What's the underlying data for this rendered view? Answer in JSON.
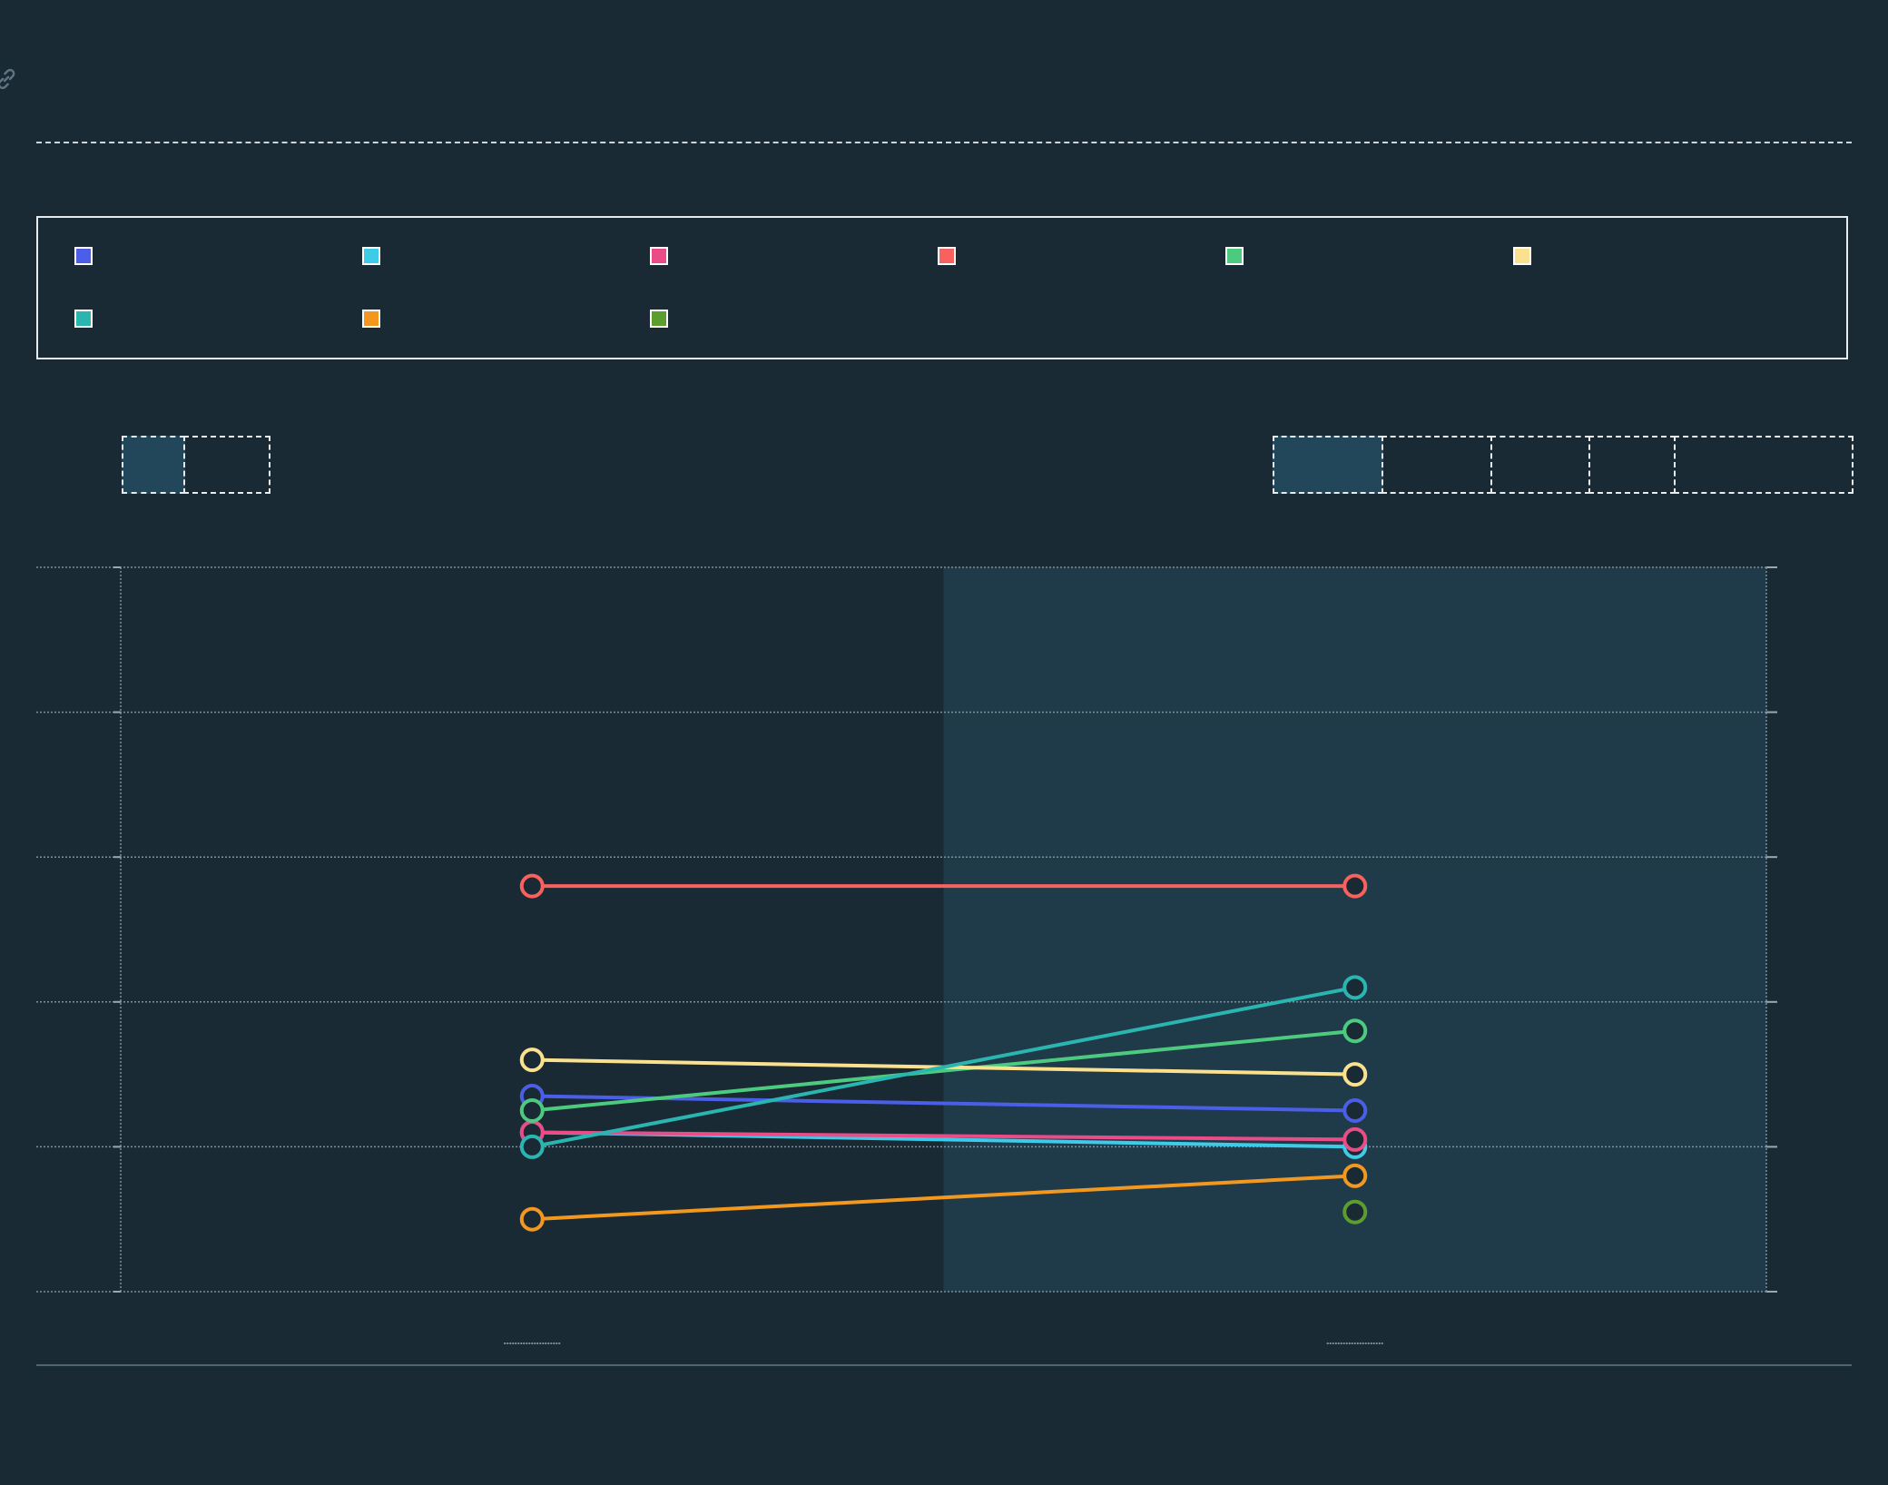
{
  "icons": {
    "link": "link-icon"
  },
  "legend": {
    "items": [
      {
        "label": "",
        "color": "#4b5ee8"
      },
      {
        "label": "",
        "color": "#3ecbe8"
      },
      {
        "label": "",
        "color": "#ea4c88"
      },
      {
        "label": "",
        "color": "#f7615e"
      },
      {
        "label": "",
        "color": "#4ccb7f"
      },
      {
        "label": "",
        "color": "#fbe18d"
      },
      {
        "label": "",
        "color": "#2ab5b0"
      },
      {
        "label": "",
        "color": "#f2981f"
      },
      {
        "label": "",
        "color": "#5c9e2e"
      }
    ]
  },
  "controls": {
    "left_group": [
      {
        "label": "",
        "active": true
      },
      {
        "label": "",
        "active": false
      }
    ],
    "right_group": [
      {
        "label": "",
        "active": true
      },
      {
        "label": "",
        "active": false
      },
      {
        "label": "",
        "active": false
      },
      {
        "label": "",
        "active": false
      },
      {
        "label": "",
        "active": false
      }
    ]
  },
  "chart_data": {
    "type": "line",
    "categories": [
      "",
      ""
    ],
    "highlighted_category_index": 1,
    "ylim": [
      0,
      5
    ],
    "grid": true,
    "title": "",
    "xlabel": "",
    "ylabel": "",
    "series": [
      {
        "color": "#4b5ee8",
        "values": [
          1.35,
          1.25
        ]
      },
      {
        "color": "#3ecbe8",
        "values": [
          1.1,
          1.0
        ]
      },
      {
        "color": "#ea4c88",
        "values": [
          1.1,
          1.05
        ]
      },
      {
        "color": "#f7615e",
        "values": [
          2.8,
          2.8
        ]
      },
      {
        "color": "#4ccb7f",
        "values": [
          1.25,
          1.8
        ]
      },
      {
        "color": "#fbe18d",
        "values": [
          1.6,
          1.5
        ]
      },
      {
        "color": "#2ab5b0",
        "values": [
          1.0,
          2.1
        ]
      },
      {
        "color": "#f2981f",
        "values": [
          0.5,
          0.8
        ]
      },
      {
        "color": "#5c9e2e",
        "values": [
          null,
          0.55
        ]
      }
    ]
  }
}
